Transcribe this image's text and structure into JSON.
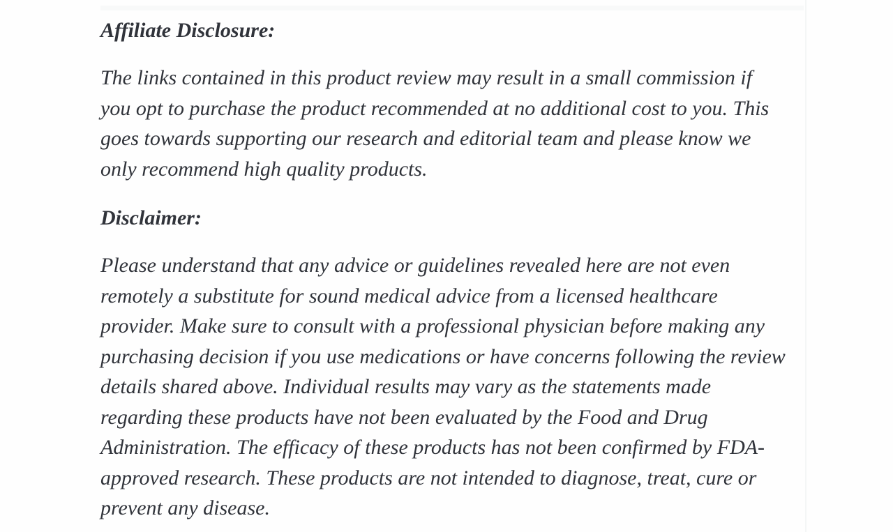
{
  "page": {
    "background_color": "#fefefe",
    "text_color": "#30333a",
    "top_band_color": "#f8f9f9",
    "right_divider_color": "#f4f6f6"
  },
  "article": {
    "sections": [
      {
        "heading": "Affiliate Disclosure:",
        "lines": [
          "The links contained in this product review may result in a small commission if",
          "you opt to purchase the product recommended at no additional cost to you. This",
          "goes towards supporting our research and editorial team and please know we",
          "only recommend high quality products."
        ]
      },
      {
        "heading": "Disclaimer:",
        "lines": [
          "Please understand that any advice or guidelines revealed here are not even",
          "remotely a substitute for sound medical advice from a licensed healthcare",
          "provider. Make sure to consult with a professional physician before making any",
          "purchasing decision if you use medications or have concerns following the review",
          "details shared above. Individual results may vary as the statements made",
          "regarding these products have not been evaluated by the Food and Drug",
          "Administration. The efficacy of these products has not been confirmed by FDA-",
          "approved research. These products are not intended to diagnose, treat, cure or",
          "prevent any disease."
        ]
      }
    ]
  }
}
